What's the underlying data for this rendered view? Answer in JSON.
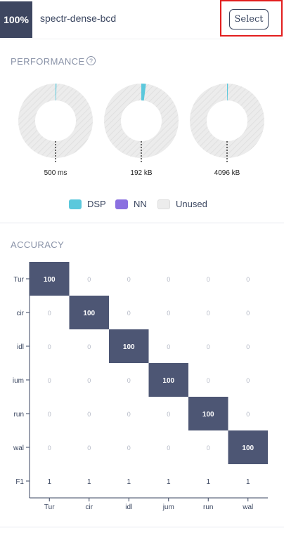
{
  "header": {
    "badge": "100%",
    "model_name": "spectr-dense-bcd",
    "select_label": "Select"
  },
  "performance": {
    "title": "PERFORMANCE",
    "help_icon": "?",
    "gauges": [
      {
        "label": "500 ms",
        "dsp": 0.004,
        "nn": 0.0
      },
      {
        "label": "192 kB",
        "dsp": 0.02,
        "nn": 0.0
      },
      {
        "label": "4096 kB",
        "dsp": 0.003,
        "nn": 0.0
      }
    ],
    "legend": [
      {
        "label": "DSP",
        "color": "#5bc8dc"
      },
      {
        "label": "NN",
        "color": "#8a6fe0"
      },
      {
        "label": "Unused",
        "color": "#ececec"
      }
    ]
  },
  "accuracy": {
    "title": "ACCURACY",
    "rows": [
      "Tur",
      "cir",
      "idl",
      "ium",
      "run",
      "wal"
    ],
    "cols": [
      "Tur",
      "cir",
      "idl",
      "jum",
      "run",
      "wal"
    ],
    "matrix": [
      [
        "100",
        "0",
        "0",
        "0",
        "0",
        "0"
      ],
      [
        "0",
        "100",
        "0",
        "0",
        "0",
        "0"
      ],
      [
        "0",
        "0",
        "100",
        "0",
        "0",
        "0"
      ],
      [
        "0",
        "0",
        "0",
        "100",
        "0",
        "0"
      ],
      [
        "0",
        "0",
        "0",
        "0",
        "100",
        "0"
      ],
      [
        "0",
        "0",
        "0",
        "0",
        "0",
        "100"
      ]
    ],
    "f1_label": "F1",
    "f1": [
      "1",
      "1",
      "1",
      "1",
      "1",
      "1"
    ],
    "highlight_color": "#4d5674"
  }
}
